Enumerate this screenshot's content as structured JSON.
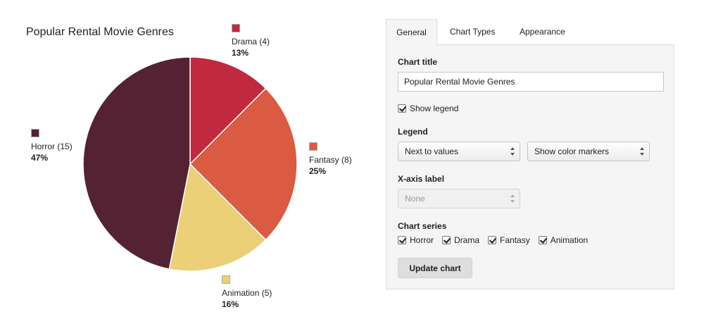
{
  "chart_data": {
    "type": "pie",
    "title": "Popular Rental Movie Genres",
    "slices": [
      {
        "label": "Drama",
        "value": 4,
        "percent": "13%",
        "color": "#c0293f"
      },
      {
        "label": "Fantasy",
        "value": 8,
        "percent": "25%",
        "color": "#db5a42"
      },
      {
        "label": "Animation",
        "value": 5,
        "percent": "16%",
        "color": "#ebd078"
      },
      {
        "label": "Horror",
        "value": 15,
        "percent": "47%",
        "color": "#552233"
      }
    ],
    "legend": "next to values with color markers"
  },
  "tabs": [
    {
      "label": "General"
    },
    {
      "label": "Chart Types"
    },
    {
      "label": "Appearance"
    }
  ],
  "settings": {
    "chart_title_label": "Chart title",
    "chart_title_value": "Popular Rental Movie Genres",
    "show_legend_label": "Show legend",
    "legend_label": "Legend",
    "legend_position": "Next to values",
    "legend_markers": "Show color markers",
    "xaxis_label": "X-axis label",
    "xaxis_value": "None",
    "chart_series_label": "Chart series",
    "series": [
      {
        "label": "Horror"
      },
      {
        "label": "Drama"
      },
      {
        "label": "Fantasy"
      },
      {
        "label": "Animation"
      }
    ],
    "update_button": "Update chart"
  }
}
